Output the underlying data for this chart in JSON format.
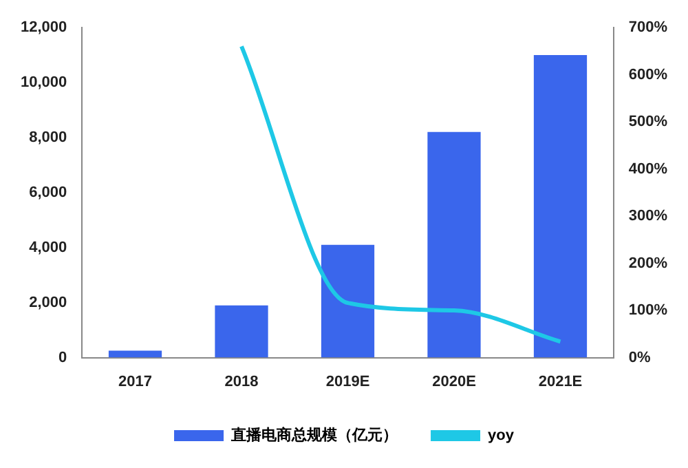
{
  "chart_data": {
    "type": "bar",
    "categories": [
      "2017",
      "2018",
      "2019E",
      "2020E",
      "2021E"
    ],
    "series": [
      {
        "name": "直播电商总规模（亿元）",
        "color": "#3a66ec",
        "values": [
          250,
          1900,
          4100,
          8200,
          11000
        ]
      },
      {
        "name": "yoy",
        "type": "line",
        "axis": "y2",
        "color": "#1ec8e6",
        "values": [
          null,
          660,
          116,
          100,
          34
        ]
      }
    ],
    "ylim": [
      0,
      12000
    ],
    "yticks": [
      0,
      {
        "value": 2000,
        "label": "2,000"
      },
      {
        "value": 4000,
        "label": "4,000"
      },
      {
        "value": 6000,
        "label": "6,000"
      },
      {
        "value": 8000,
        "label": "8,000"
      },
      {
        "value": 10000,
        "label": "10,000"
      },
      {
        "value": 12000,
        "label": "12,000"
      }
    ],
    "y2lim": [
      0,
      700
    ],
    "y2ticks": [
      {
        "value": 0,
        "label": "0%"
      },
      {
        "value": 100,
        "label": "100%"
      },
      {
        "value": 200,
        "label": "200%"
      },
      {
        "value": 300,
        "label": "300%"
      },
      {
        "value": 400,
        "label": "400%"
      },
      {
        "value": 500,
        "label": "500%"
      },
      {
        "value": 600,
        "label": "600%"
      },
      {
        "value": 700,
        "label": "700%"
      }
    ],
    "grid": false,
    "legend": "bottom",
    "marker": "none",
    "line_style": "solid"
  }
}
